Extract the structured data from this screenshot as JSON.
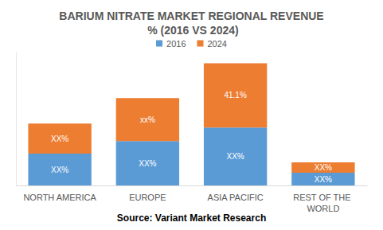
{
  "chart_data": {
    "type": "bar",
    "title": "BARIUM NITRATE MARKET REGIONAL REVENUE % (2016 VS 2024)",
    "source": "Source: Variant Market Research",
    "categories": [
      "NORTH AMERICA",
      "EUROPE",
      "ASIA PACIFIC",
      "REST OF THE WORLD"
    ],
    "series": [
      {
        "name": "2016",
        "color": "#5B9BD5",
        "values": [
          20.3,
          28.4,
          37.0,
          8.1
        ],
        "value_labels": [
          "XX%",
          "XX%",
          "XX%",
          "XX%"
        ]
      },
      {
        "name": "2024",
        "color": "#ED7D31",
        "values": [
          19.3,
          27.4,
          41.1,
          6.6
        ],
        "value_labels": [
          "XX%",
          "xx%",
          "41.1%",
          "XX%"
        ]
      }
    ],
    "stacked": true,
    "data_labels": true,
    "legend": "top",
    "grid": false,
    "tick_labels": "x",
    "ylim": [
      0,
      85
    ]
  }
}
